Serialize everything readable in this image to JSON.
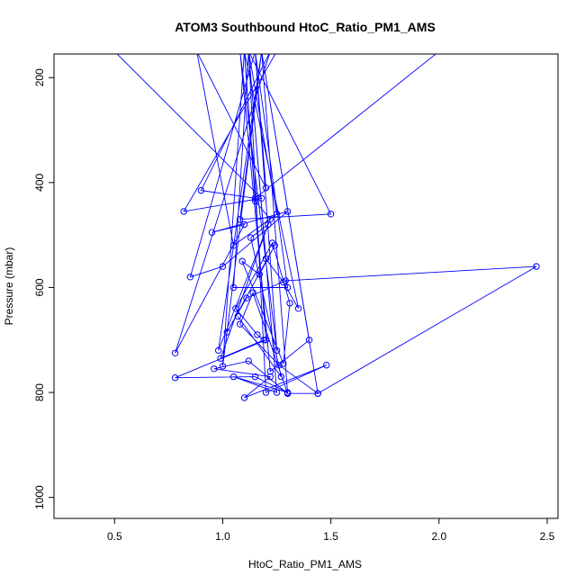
{
  "chart_data": {
    "type": "line",
    "title": "ATOM3 Southbound HtoC_Ratio_PM1_AMS",
    "xlabel": "HtoC_Ratio_PM1_AMS",
    "ylabel": "Pressure (mbar)",
    "xlim": [
      0.22,
      2.55
    ],
    "ylim": [
      1040,
      155
    ],
    "y_reversed": true,
    "x_ticks": [
      0.5,
      1.0,
      1.5,
      2.0,
      2.5
    ],
    "x_tick_labels": [
      "0.5",
      "1.0",
      "1.5",
      "2.0",
      "2.5"
    ],
    "y_ticks": [
      200,
      400,
      600,
      800,
      1000
    ],
    "y_tick_labels": [
      "200",
      "400",
      "600",
      "800",
      "1000"
    ],
    "grid": false,
    "legend": "none",
    "colors": {
      "series": "#0000ff",
      "axis": "#000000"
    },
    "series": [
      {
        "x": [
          0.5,
          1.18,
          0.82,
          1.25,
          2.0,
          1.15,
          0.9,
          1.22,
          0.78,
          1.1,
          0.95,
          1.3,
          1.0,
          0.85,
          1.15,
          1.2,
          0.88,
          1.05,
          1.25,
          1.12,
          1.5,
          1.08,
          1.18,
          0.98,
          1.22,
          1.15,
          1.1,
          1.35,
          1.28,
          1.2,
          1.12,
          1.05,
          1.3,
          1.15,
          1.25,
          1.08,
          1.22,
          1.4,
          1.18,
          1.0,
          1.1,
          1.2,
          0.78,
          1.15,
          1.3,
          1.05,
          1.25,
          1.12,
          1.2,
          1.48,
          1.1,
          1.22,
          0.96,
          1.12,
          1.3,
          1.18,
          1.44,
          1.26,
          1.08,
          1.14,
          1.3,
          1.44,
          2.45,
          1.29,
          1.11,
          1.02,
          1.24,
          1.17,
          1.09,
          1.28,
          1.31,
          1.23,
          1.06,
          1.16,
          1.19,
          0.99,
          1.21,
          1.13,
          1.27,
          1.07
        ],
        "y": [
          150,
          430,
          455,
          150,
          150,
          430,
          415,
          150,
          725,
          480,
          495,
          455,
          560,
          580,
          150,
          410,
          150,
          520,
          460,
          150,
          460,
          470,
          150,
          720,
          470,
          435,
          150,
          640,
          590,
          545,
          150,
          600,
          600,
          150,
          720,
          150,
          760,
          700,
          150,
          750,
          150,
          700,
          772,
          770,
          800,
          770,
          800,
          150,
          800,
          748,
          810,
          770,
          755,
          740,
          802,
          150,
          802,
          748,
          670,
          610,
          802,
          802,
          560,
          587,
          620,
          685,
          520,
          575,
          550,
          745,
          630,
          515,
          640,
          690,
          700,
          735,
          480,
          505,
          770,
          655
        ]
      }
    ]
  }
}
